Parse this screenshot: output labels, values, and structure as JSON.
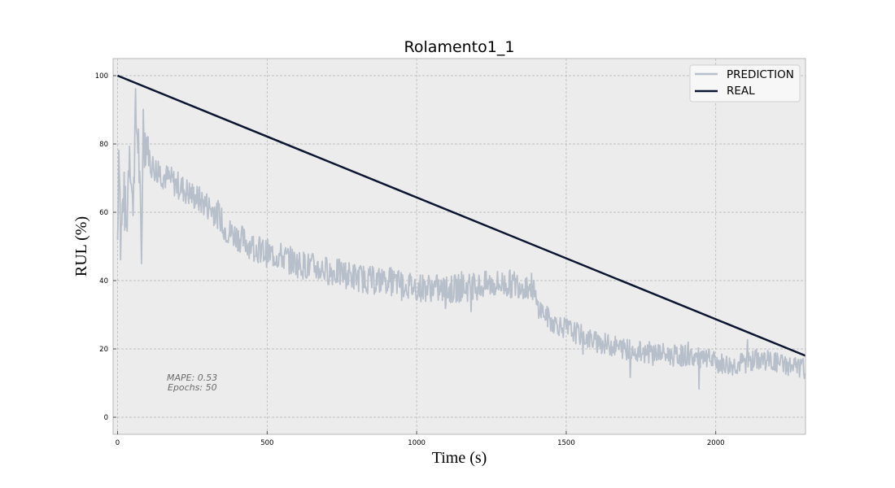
{
  "chart_data": {
    "type": "line",
    "title": "Rolamento1_1",
    "xlabel": "Time (s)",
    "ylabel": "RUL (%)",
    "xlim": [
      -15,
      2300
    ],
    "ylim": [
      -5,
      105
    ],
    "x_ticks": [
      0,
      500,
      1000,
      1500,
      2000
    ],
    "y_ticks": [
      0,
      20,
      40,
      60,
      80,
      100
    ],
    "grid": true,
    "legend_position": "top-right",
    "series": [
      {
        "name": "PREDICTION",
        "color": "#b7bfca",
        "noisy": true,
        "points": [
          [
            0,
            52
          ],
          [
            5,
            86
          ],
          [
            10,
            50
          ],
          [
            20,
            66
          ],
          [
            30,
            55
          ],
          [
            40,
            82
          ],
          [
            50,
            60
          ],
          [
            60,
            88
          ],
          [
            70,
            80
          ],
          [
            80,
            44
          ],
          [
            85,
            88
          ],
          [
            90,
            82
          ],
          [
            100,
            80
          ],
          [
            110,
            74
          ],
          [
            150,
            71
          ],
          [
            200,
            68
          ],
          [
            250,
            65
          ],
          [
            300,
            62
          ],
          [
            340,
            59
          ],
          [
            360,
            55
          ],
          [
            400,
            53
          ],
          [
            450,
            50
          ],
          [
            500,
            48
          ],
          [
            550,
            47
          ],
          [
            600,
            45
          ],
          [
            650,
            44
          ],
          [
            700,
            43
          ],
          [
            750,
            42
          ],
          [
            800,
            41
          ],
          [
            850,
            40
          ],
          [
            900,
            40
          ],
          [
            950,
            39
          ],
          [
            1000,
            38
          ],
          [
            1050,
            38
          ],
          [
            1100,
            37
          ],
          [
            1150,
            38
          ],
          [
            1200,
            38
          ],
          [
            1250,
            39
          ],
          [
            1300,
            39
          ],
          [
            1350,
            39
          ],
          [
            1390,
            38
          ],
          [
            1400,
            33
          ],
          [
            1420,
            31
          ],
          [
            1450,
            28
          ],
          [
            1500,
            26
          ],
          [
            1550,
            24
          ],
          [
            1600,
            22
          ],
          [
            1650,
            21
          ],
          [
            1700,
            20
          ],
          [
            1750,
            19
          ],
          [
            1800,
            19
          ],
          [
            1850,
            18
          ],
          [
            1900,
            18
          ],
          [
            1950,
            17
          ],
          [
            2000,
            16
          ],
          [
            2050,
            15
          ],
          [
            2100,
            16
          ],
          [
            2150,
            17
          ],
          [
            2200,
            16
          ],
          [
            2250,
            15
          ],
          [
            2300,
            14
          ]
        ]
      },
      {
        "name": "REAL",
        "color": "#0b1530",
        "noisy": false,
        "points": [
          [
            0,
            100
          ],
          [
            2300,
            18
          ]
        ]
      }
    ],
    "annotations": [
      "MAPE: 0.53",
      "Epochs: 50"
    ]
  }
}
